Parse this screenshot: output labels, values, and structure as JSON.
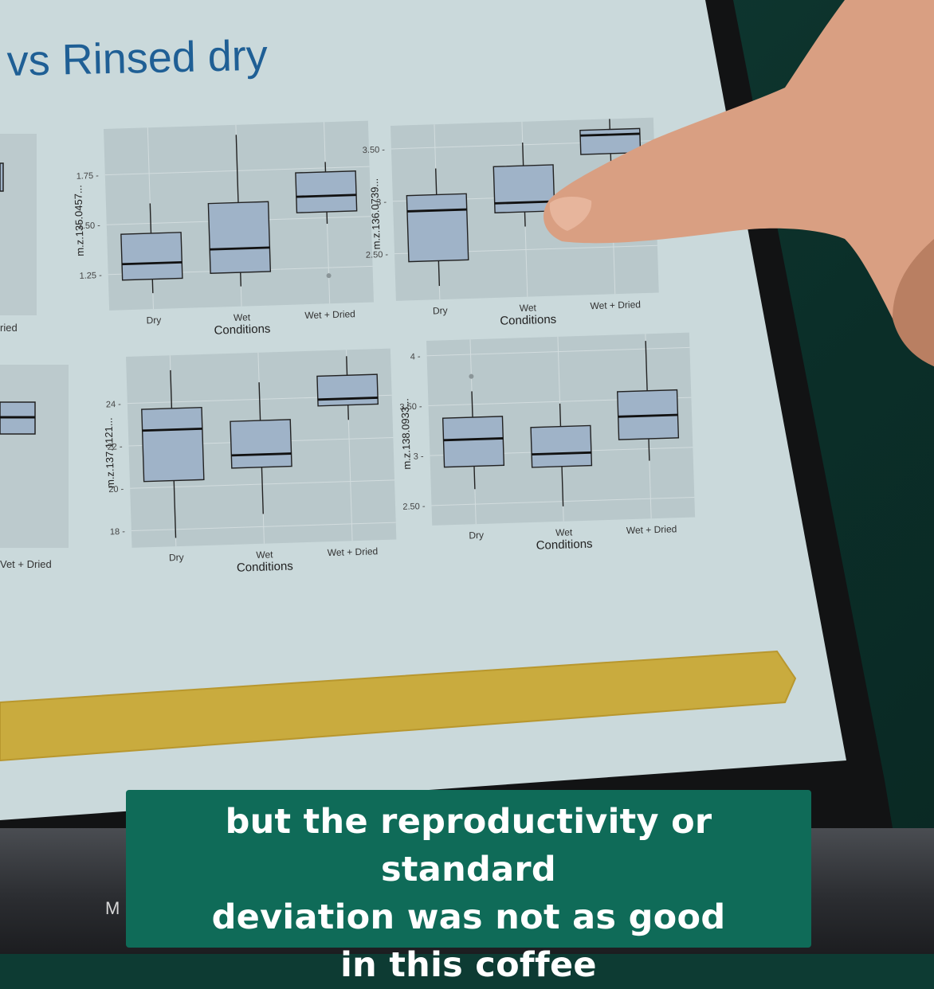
{
  "slide": {
    "title": "vs Rinsed dry",
    "left_partial_labels": [
      "ried",
      "Vet + Dried"
    ]
  },
  "chart_data": [
    {
      "type": "boxplot",
      "xlabel": "Conditions",
      "ylabel": "m.z.135.0457...",
      "categories": [
        "Dry",
        "Wet",
        "Wet + Dried"
      ],
      "yticks": [
        1.25,
        1.5,
        1.75
      ],
      "ylim": [
        1.07,
        1.98
      ],
      "series": [
        {
          "category": "Dry",
          "min": 1.15,
          "q1": 1.22,
          "median": 1.3,
          "q3": 1.45,
          "max": 1.6
        },
        {
          "category": "Wet",
          "min": 1.17,
          "q1": 1.24,
          "median": 1.36,
          "q3": 1.59,
          "max": 1.93
        },
        {
          "category": "Wet + Dried",
          "min": 1.47,
          "q1": 1.53,
          "median": 1.61,
          "q3": 1.73,
          "max": 1.78,
          "outliers": [
            1.21
          ]
        }
      ]
    },
    {
      "type": "boxplot",
      "xlabel": "Conditions",
      "ylabel": "m.z.136.0739...",
      "categories": [
        "Dry",
        "Wet",
        "Wet + Dried"
      ],
      "yticks": [
        2.5,
        3.0,
        3.5
      ],
      "ylim": [
        2.05,
        3.72
      ],
      "series": [
        {
          "category": "Dry",
          "min": 2.18,
          "q1": 2.42,
          "median": 2.9,
          "q3": 3.05,
          "max": 3.3
        },
        {
          "category": "Wet",
          "min": 2.72,
          "q1": 2.86,
          "median": 2.95,
          "q3": 3.3,
          "max": 3.52
        },
        {
          "category": "Wet + Dried",
          "min": 3.3,
          "q1": 3.39,
          "median": 3.57,
          "q3": 3.62,
          "max": 3.72
        }
      ]
    },
    {
      "type": "boxplot",
      "xlabel": "Conditions",
      "ylabel": "m.z.137.1121...",
      "categories": [
        "Dry",
        "Wet",
        "Wet + Dried"
      ],
      "yticks": [
        18,
        20,
        22,
        24
      ],
      "ylim": [
        17.2,
        26.2
      ],
      "series": [
        {
          "category": "Dry",
          "min": 17.6,
          "q1": 20.3,
          "median": 22.7,
          "q3": 23.7,
          "max": 25.5
        },
        {
          "category": "Wet",
          "min": 18.6,
          "q1": 20.8,
          "median": 21.4,
          "q3": 23.0,
          "max": 24.8
        },
        {
          "category": "Wet + Dried",
          "min": 22.9,
          "q1": 23.6,
          "median": 23.9,
          "q3": 25.0,
          "max": 25.9
        }
      ]
    },
    {
      "type": "boxplot",
      "xlabel": "Conditions",
      "ylabel": "m.z.138.0933...",
      "categories": [
        "Dry",
        "Wet",
        "Wet + Dried"
      ],
      "yticks": [
        2.5,
        3.0,
        3.5,
        4.0
      ],
      "ylim": [
        2.3,
        4.15
      ],
      "series": [
        {
          "category": "Dry",
          "min": 2.65,
          "q1": 2.88,
          "median": 3.15,
          "q3": 3.37,
          "max": 3.63,
          "outliers": [
            3.78
          ]
        },
        {
          "category": "Wet",
          "min": 2.45,
          "q1": 2.85,
          "median": 2.98,
          "q3": 3.25,
          "max": 3.48
        },
        {
          "category": "Wet + Dried",
          "min": 2.88,
          "q1": 3.1,
          "median": 3.33,
          "q3": 3.58,
          "max": 4.08
        }
      ]
    }
  ],
  "caption": {
    "line1": "but the reproductivity or standard",
    "line2": "deviation was not as good",
    "line3": "in this coffee"
  },
  "keyboard": {
    "label": "M"
  },
  "colors": {
    "screen": "#c8d8da",
    "panel": "#b9c8cb",
    "box_fill": "#9fb3c8",
    "title": "#1f5f95",
    "arrow": "#c9a83a",
    "caption_bg": "#0f6b58"
  }
}
